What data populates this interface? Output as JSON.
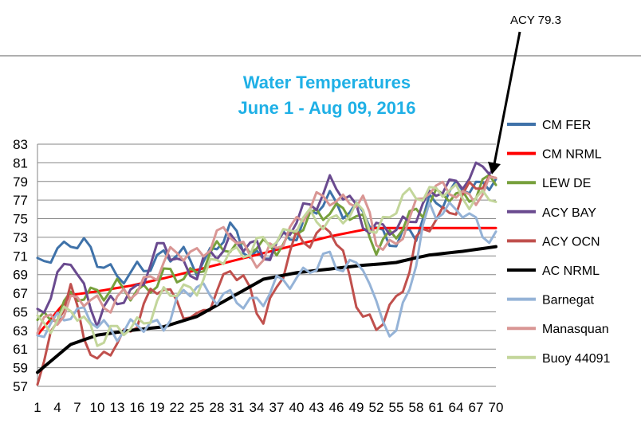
{
  "chart_data": {
    "type": "line",
    "title": "Water Temperatures",
    "subtitle": "June 1 - Aug 09, 2016",
    "xlabel": "",
    "ylabel": "",
    "ylim": [
      57,
      83
    ],
    "yticks": [
      57,
      59,
      61,
      63,
      65,
      67,
      69,
      71,
      73,
      75,
      77,
      79,
      81,
      83
    ],
    "xticks": [
      1,
      4,
      7,
      10,
      13,
      16,
      19,
      22,
      25,
      28,
      31,
      34,
      37,
      40,
      43,
      46,
      49,
      52,
      55,
      58,
      61,
      64,
      67,
      70
    ],
    "grid": "horizontal",
    "legend": "right",
    "annotation": "ACY 79.3",
    "x_keyframes": [
      1,
      6,
      10,
      15,
      20,
      25,
      30,
      35,
      40,
      45,
      50,
      52,
      55,
      58,
      60,
      65,
      70
    ],
    "series": [
      {
        "name": "CM FER",
        "color": "#3f72a9",
        "width": 3,
        "values": [
          69.5,
          73.0,
          70.5,
          68.5,
          71.5,
          70.0,
          73.5,
          70.5,
          74.0,
          77.0,
          75.5,
          73.5,
          73.0,
          73.0,
          77.0,
          78.0,
          79.5
        ]
      },
      {
        "name": "CM NRML",
        "color": "#ff0000",
        "width": 3,
        "values": [
          62.5,
          66.8,
          67.2,
          67.8,
          68.6,
          69.5,
          70.4,
          71.3,
          72.2,
          73.1,
          73.8,
          74.0,
          74.0,
          74.0,
          74.0,
          74.0,
          74.0
        ]
      },
      {
        "name": "LEW DE",
        "color": "#77a03c",
        "width": 3,
        "values": [
          64.0,
          66.0,
          67.5,
          67.0,
          68.5,
          69.5,
          72.5,
          71.5,
          73.5,
          76.5,
          74.5,
          72.5,
          73.0,
          76.0,
          77.0,
          77.5,
          79.0
        ]
      },
      {
        "name": "ACY BAY",
        "color": "#6a4a8f",
        "width": 3,
        "values": [
          65.0,
          70.5,
          64.5,
          67.0,
          72.0,
          69.0,
          73.0,
          71.0,
          74.5,
          79.0,
          75.0,
          74.0,
          73.5,
          76.0,
          77.0,
          79.5,
          80.5
        ]
      },
      {
        "name": "ACY OCN",
        "color": "#c0504d",
        "width": 3,
        "values": [
          58.0,
          67.5,
          59.0,
          63.5,
          68.0,
          63.5,
          70.0,
          64.5,
          72.5,
          74.0,
          65.0,
          63.0,
          66.0,
          72.5,
          74.0,
          77.5,
          79.3
        ]
      },
      {
        "name": "AC NRML",
        "color": "#000000",
        "width": 4,
        "values": [
          58.5,
          61.5,
          62.5,
          63.0,
          63.4,
          64.5,
          66.5,
          68.5,
          69.2,
          69.6,
          70.0,
          70.1,
          70.3,
          70.8,
          71.1,
          71.5,
          72.0
        ]
      },
      {
        "name": "Barnegat",
        "color": "#95b3d7",
        "width": 3,
        "values": [
          62.0,
          65.5,
          63.5,
          63.0,
          64.0,
          68.0,
          66.0,
          66.5,
          69.0,
          70.5,
          70.0,
          65.0,
          63.0,
          70.0,
          76.5,
          75.5,
          73.0
        ]
      },
      {
        "name": "Manasquan",
        "color": "#d99694",
        "width": 3,
        "values": [
          63.0,
          66.0,
          66.0,
          66.5,
          70.5,
          71.5,
          73.5,
          70.0,
          75.0,
          77.5,
          76.5,
          73.0,
          72.0,
          76.0,
          79.0,
          77.0,
          79.0
        ]
      },
      {
        "name": "Buoy 44091",
        "color": "#c3d69b",
        "width": 3,
        "values": [
          63.5,
          65.0,
          62.5,
          63.0,
          66.5,
          68.0,
          71.5,
          72.0,
          74.5,
          75.0,
          75.5,
          74.0,
          76.0,
          78.0,
          78.0,
          77.5,
          77.0
        ]
      }
    ]
  }
}
